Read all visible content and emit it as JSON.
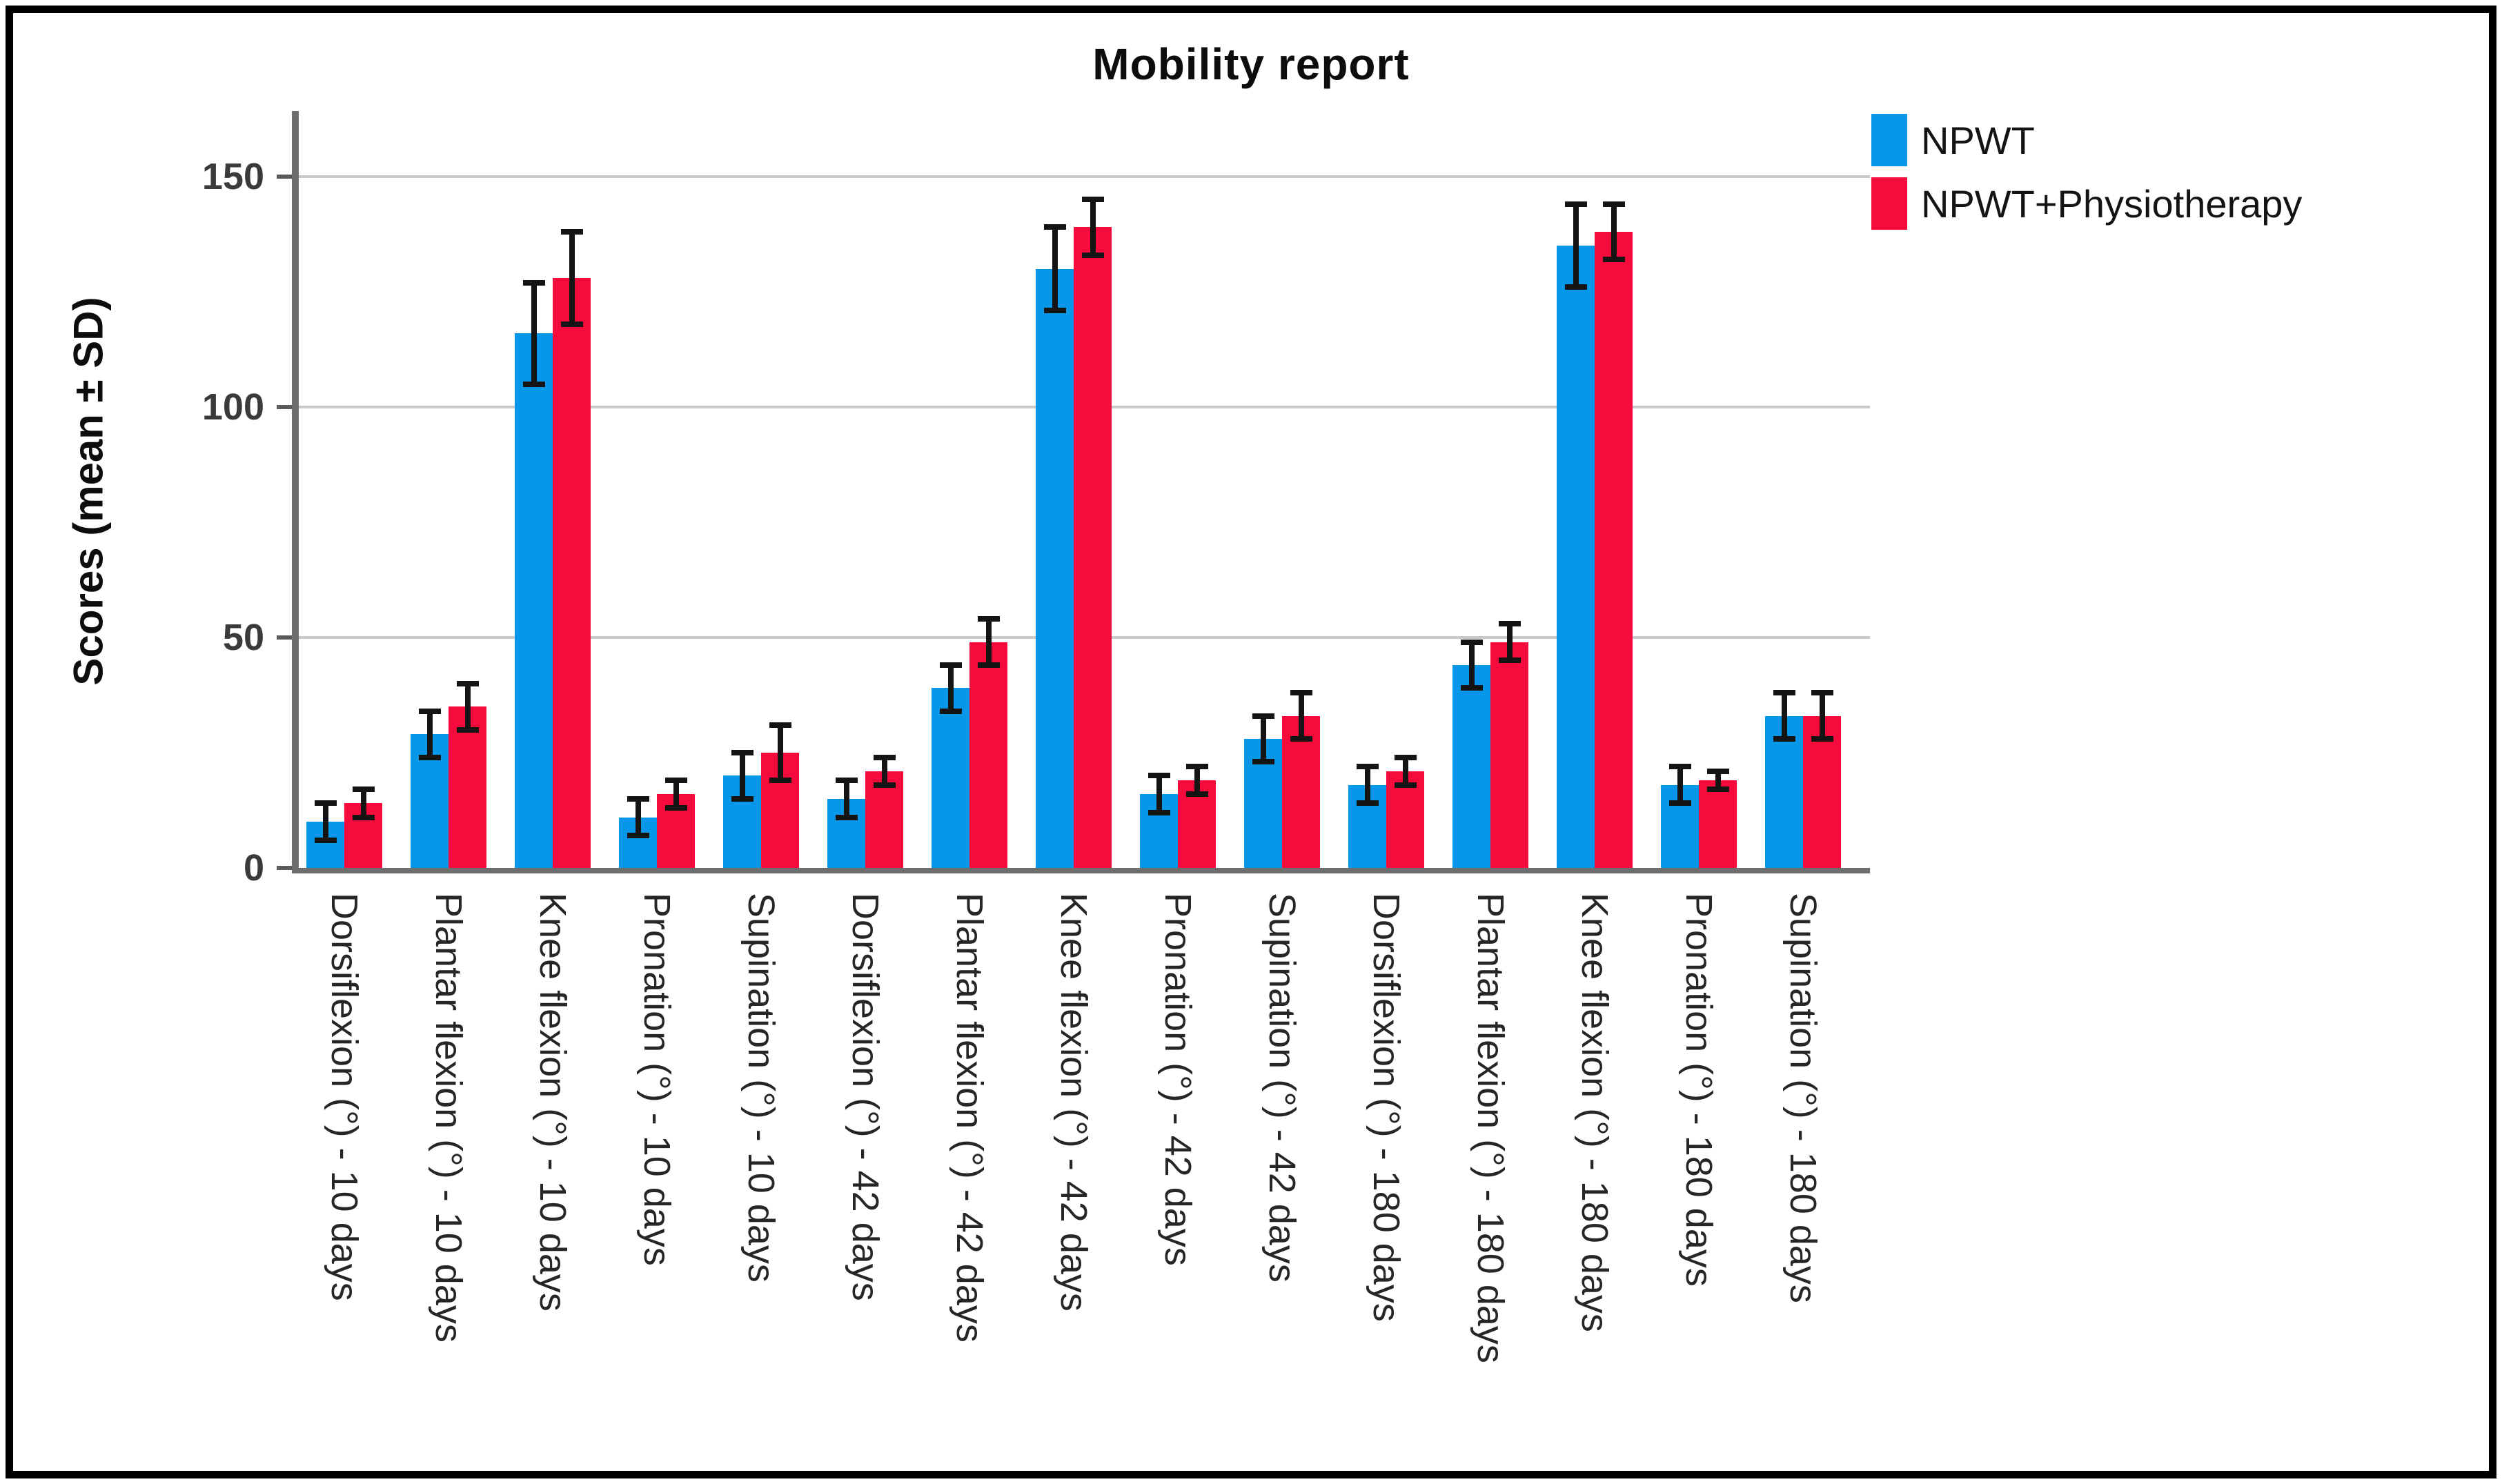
{
  "figure": {
    "background": "#ffffff",
    "border_color": "#000000"
  },
  "chart_data": {
    "type": "bar",
    "title": "Mobility report",
    "ylabel": "Scores (mean ± SD)",
    "xlabel": "",
    "ylim": [
      0,
      164
    ],
    "yticks": [
      0,
      50,
      100,
      150
    ],
    "grid": "horizontal",
    "grid_color": "#c9c9c9",
    "axis_color": "#6e6e6e",
    "error_bars": true,
    "error_bar_color": "#141414",
    "legend_position": "top-right",
    "categories": [
      "Dorsiflexion (°) - 10 days",
      "Plantar flexion (°) - 10 days",
      "Knee flexion (°) - 10 days",
      "Pronation (°) - 10 days",
      "Supination (°) - 10 days",
      "Dorsiflexion (°) - 42 days",
      "Plantar flexion (°) - 42 days",
      "Knee flexion (°) - 42 days",
      "Pronation (°) - 42 days",
      "Supination (°) - 42 days",
      "Dorsiflexion (°) - 180 days",
      "Plantar flexion (°) - 180 days",
      "Knee flexion (°) - 180 days",
      "Pronation (°) - 180 days",
      "Supination (°) - 180 days"
    ],
    "series": [
      {
        "name": "NPWT",
        "color": "#0697e8",
        "values": [
          10,
          29,
          116,
          11,
          20,
          15,
          39,
          130,
          16,
          28,
          18,
          44,
          135,
          18,
          33
        ],
        "sd": [
          4,
          5,
          11,
          4,
          5,
          4,
          5,
          9,
          4,
          5,
          4,
          5,
          9,
          4,
          5
        ]
      },
      {
        "name": "NPWT+Physiotherapy",
        "color": "#f70a3c",
        "values": [
          14,
          35,
          128,
          16,
          25,
          21,
          49,
          139,
          19,
          33,
          21,
          49,
          138,
          19,
          33
        ],
        "sd": [
          3,
          5,
          10,
          3,
          6,
          3,
          5,
          6,
          3,
          5,
          3,
          4,
          6,
          2,
          5
        ]
      }
    ]
  }
}
